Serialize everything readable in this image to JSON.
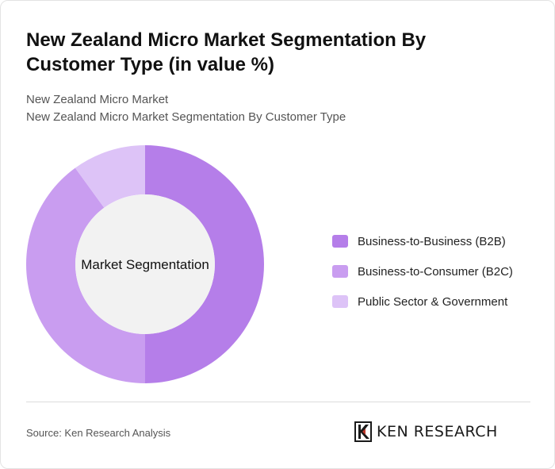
{
  "title": "New Zealand Micro Market Segmentation By Customer Type (in value %)",
  "subtitle_lines": [
    "New Zealand Micro Market",
    "New Zealand Micro Market Segmentation By Customer Type"
  ],
  "chart_data": {
    "type": "pie",
    "style": "donut",
    "center_label": "Market Segmentation",
    "categories": [
      "Business-to-Business (B2B)",
      "Business-to-Consumer (B2C)",
      "Public Sector & Government"
    ],
    "values": [
      50,
      40,
      10
    ],
    "colors": [
      "#b57ee9",
      "#c99df0",
      "#ddc3f7"
    ],
    "center_color": "#f2f2f2",
    "legend_position": "right"
  },
  "footer": {
    "source": "Source: Ken Research Analysis",
    "logo_text": "KEN RESEARCH"
  }
}
